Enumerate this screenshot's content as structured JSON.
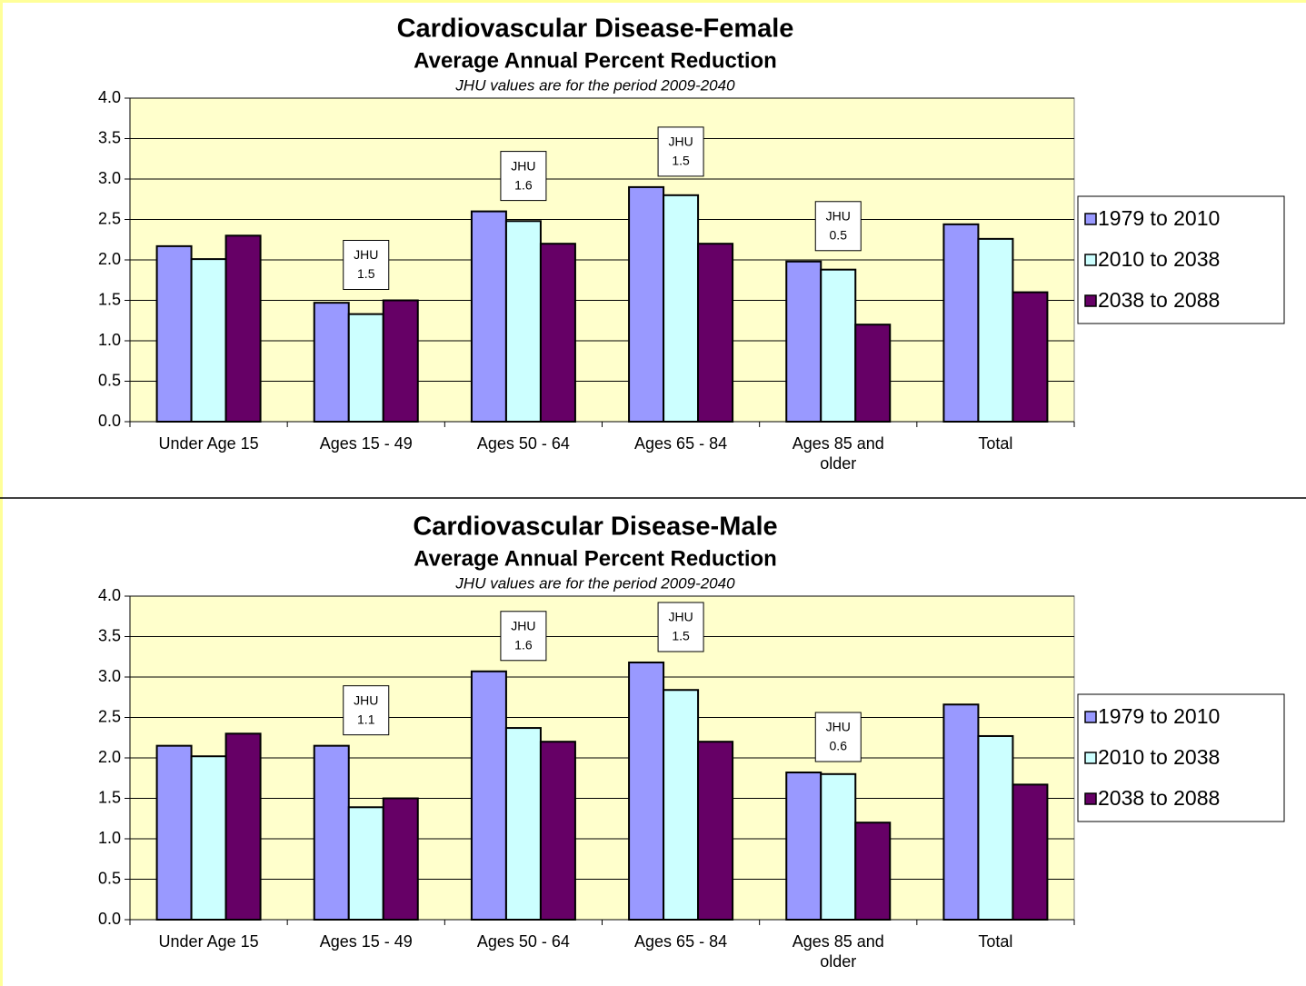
{
  "chart_data": [
    {
      "type": "bar",
      "title": "Cardiovascular Disease-Female",
      "subtitle": "Average Annual Percent Reduction",
      "note": "JHU values are for the period 2009-2040",
      "categories": [
        "Under Age 15",
        "Ages 15 - 49",
        "Ages 50 - 64",
        "Ages 65 - 84",
        "Ages 85 and older",
        "Total"
      ],
      "series": [
        {
          "name": "1979 to 2010",
          "color": "#9999ff",
          "values": [
            2.17,
            1.47,
            2.6,
            2.9,
            1.98,
            2.44
          ]
        },
        {
          "name": "2010 to 2038",
          "color": "#ccffff",
          "values": [
            2.01,
            1.33,
            2.48,
            2.8,
            1.88,
            2.26
          ]
        },
        {
          "name": "2038 to 2088",
          "color": "#660066",
          "values": [
            2.3,
            1.5,
            2.2,
            2.2,
            1.2,
            1.6
          ]
        }
      ],
      "annotations": [
        null,
        {
          "label": "JHU",
          "value": 1.5
        },
        {
          "label": "JHU",
          "value": 1.6
        },
        {
          "label": "JHU",
          "value": 1.5
        },
        {
          "label": "JHU",
          "value": 0.5
        },
        null
      ],
      "ylim": [
        0,
        4
      ],
      "yticks": [
        {
          "value": 0,
          "label": "0.0"
        },
        {
          "value": 0.5,
          "label": "0.5"
        },
        {
          "value": 1,
          "label": "1.0"
        },
        {
          "value": 1.5,
          "label": "1.5"
        },
        {
          "value": 2,
          "label": "2.0"
        },
        {
          "value": 2.5,
          "label": "2.5"
        },
        {
          "value": 3,
          "label": "3.0"
        },
        {
          "value": 3.5,
          "label": "3.5"
        },
        {
          "value": 4,
          "label": "4.0"
        }
      ],
      "grid": true,
      "legend": "right"
    },
    {
      "type": "bar",
      "title": "Cardiovascular Disease-Male",
      "subtitle": "Average Annual Percent Reduction",
      "note": "JHU values are for the period 2009-2040",
      "categories": [
        "Under Age 15",
        "Ages 15 - 49",
        "Ages 50 - 64",
        "Ages 65 - 84",
        "Ages 85 and older",
        "Total"
      ],
      "series": [
        {
          "name": "1979 to 2010",
          "color": "#9999ff",
          "values": [
            2.15,
            2.15,
            3.07,
            3.18,
            1.82,
            2.66
          ]
        },
        {
          "name": "2010 to 2038",
          "color": "#ccffff",
          "values": [
            2.02,
            1.39,
            2.37,
            2.84,
            1.8,
            2.27
          ]
        },
        {
          "name": "2038 to 2088",
          "color": "#660066",
          "values": [
            2.3,
            1.5,
            2.2,
            2.2,
            1.2,
            1.67
          ]
        }
      ],
      "annotations": [
        null,
        {
          "label": "JHU",
          "value": 1.1
        },
        {
          "label": "JHU",
          "value": 1.6
        },
        {
          "label": "JHU",
          "value": 1.5
        },
        {
          "label": "JHU",
          "value": 0.6
        },
        null
      ],
      "ylim": [
        0,
        4
      ],
      "yticks": [
        {
          "value": 0,
          "label": "0.0"
        },
        {
          "value": 0.5,
          "label": "0.5"
        },
        {
          "value": 1,
          "label": "1.0"
        },
        {
          "value": 1.5,
          "label": "1.5"
        },
        {
          "value": 2,
          "label": "2.0"
        },
        {
          "value": 2.5,
          "label": "2.5"
        },
        {
          "value": 3,
          "label": "3.0"
        },
        {
          "value": 3.5,
          "label": "3.5"
        },
        {
          "value": 4,
          "label": "4.0"
        }
      ],
      "grid": true,
      "legend": "right"
    }
  ]
}
